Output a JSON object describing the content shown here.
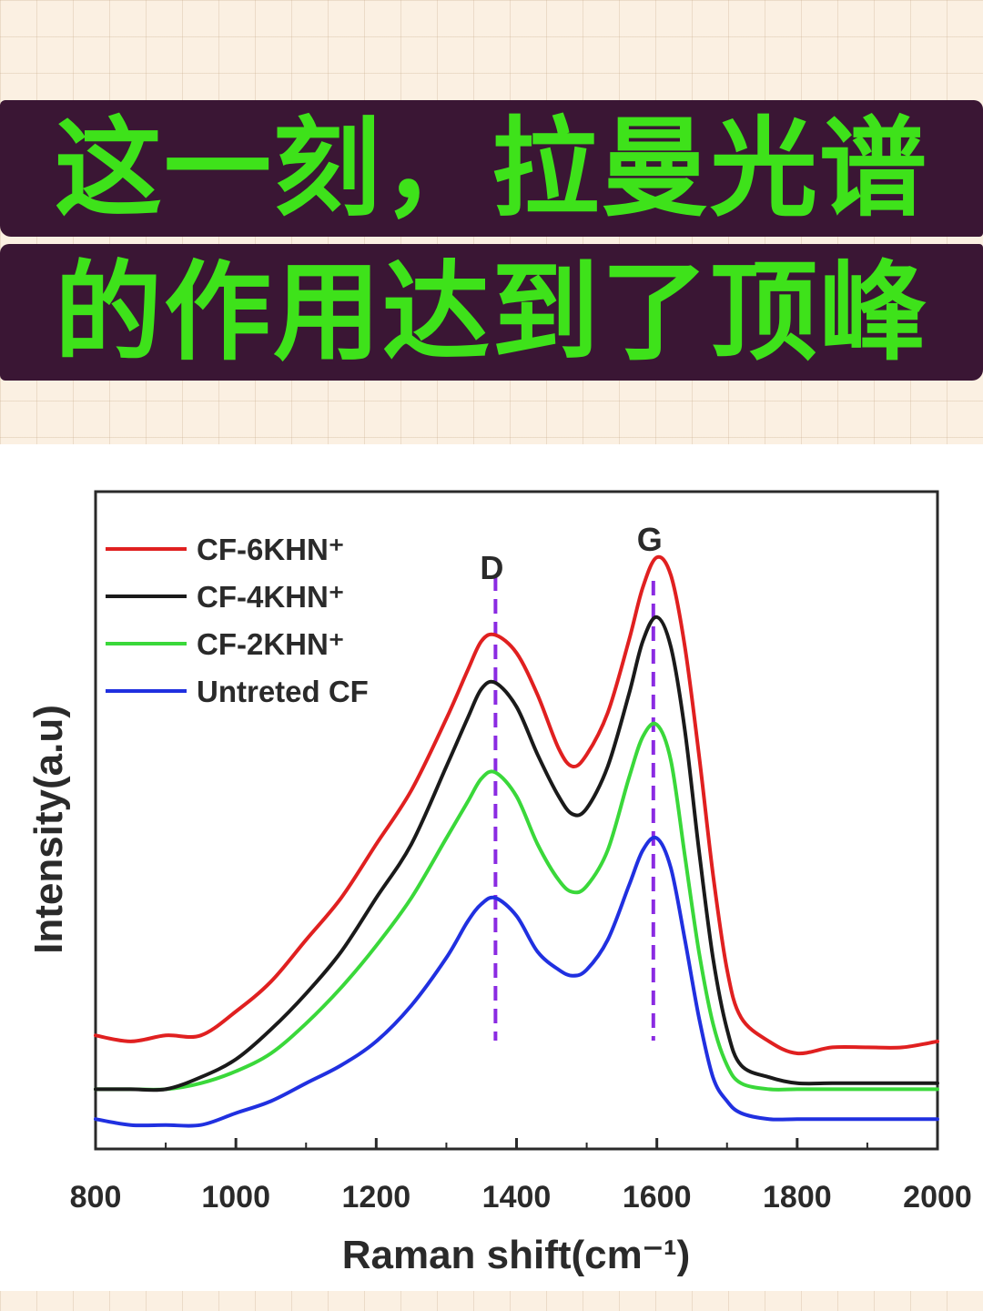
{
  "banner": {
    "line1": "这一刻，拉曼光谱",
    "line2": "的作用达到了顶峰",
    "background": "#3a1634",
    "text_color": "#3ee21a"
  },
  "chart_data": {
    "type": "line",
    "xlabel": "Raman shift(cm⁻¹)",
    "ylabel": "Intensity(a.u)",
    "xlim": [
      800,
      2000
    ],
    "ylim": [
      0,
      1.1
    ],
    "xticks": [
      "800",
      "1000",
      "1200",
      "1400",
      "1600",
      "1800",
      "2000"
    ],
    "y_tick_labels": false,
    "grid": false,
    "legend_position": "top-left",
    "peaks": [
      {
        "label": "D",
        "x": 1370
      },
      {
        "label": "G",
        "x": 1595
      }
    ],
    "peak_line_color": "#8a2be2",
    "series": [
      {
        "name": "CF-6KHN⁺",
        "color": "#e02020",
        "x": [
          800,
          850,
          900,
          950,
          1000,
          1050,
          1100,
          1150,
          1200,
          1250,
          1300,
          1330,
          1350,
          1370,
          1400,
          1430,
          1460,
          1480,
          1500,
          1530,
          1560,
          1580,
          1600,
          1620,
          1640,
          1660,
          1680,
          1700,
          1720,
          1760,
          1800,
          1850,
          1900,
          1950,
          2000
        ],
        "y": [
          0.19,
          0.18,
          0.19,
          0.19,
          0.23,
          0.28,
          0.35,
          0.42,
          0.51,
          0.6,
          0.72,
          0.8,
          0.85,
          0.86,
          0.83,
          0.76,
          0.67,
          0.64,
          0.66,
          0.73,
          0.85,
          0.94,
          0.99,
          0.96,
          0.84,
          0.66,
          0.46,
          0.3,
          0.22,
          0.18,
          0.16,
          0.17,
          0.17,
          0.17,
          0.18
        ]
      },
      {
        "name": "CF-4KHN⁺",
        "color": "#1a1a1a",
        "x": [
          800,
          850,
          900,
          950,
          1000,
          1050,
          1100,
          1150,
          1200,
          1250,
          1300,
          1330,
          1350,
          1370,
          1400,
          1430,
          1460,
          1480,
          1500,
          1530,
          1560,
          1580,
          1600,
          1620,
          1640,
          1660,
          1680,
          1700,
          1720,
          1760,
          1800,
          1850,
          1900,
          1950,
          2000
        ],
        "y": [
          0.1,
          0.1,
          0.1,
          0.12,
          0.15,
          0.2,
          0.26,
          0.33,
          0.42,
          0.51,
          0.64,
          0.72,
          0.77,
          0.78,
          0.74,
          0.66,
          0.59,
          0.56,
          0.57,
          0.64,
          0.76,
          0.85,
          0.89,
          0.84,
          0.7,
          0.5,
          0.32,
          0.2,
          0.14,
          0.12,
          0.11,
          0.11,
          0.11,
          0.11,
          0.11
        ]
      },
      {
        "name": "CF-2KHN⁺",
        "color": "#3ad83a",
        "x": [
          800,
          850,
          900,
          950,
          1000,
          1050,
          1100,
          1150,
          1200,
          1250,
          1300,
          1330,
          1350,
          1370,
          1400,
          1430,
          1460,
          1480,
          1500,
          1530,
          1560,
          1580,
          1600,
          1620,
          1640,
          1660,
          1680,
          1700,
          1720,
          1760,
          1800,
          1850,
          1900,
          1950,
          2000
        ],
        "y": [
          0.1,
          0.1,
          0.1,
          0.11,
          0.13,
          0.16,
          0.21,
          0.27,
          0.34,
          0.42,
          0.52,
          0.58,
          0.62,
          0.63,
          0.59,
          0.51,
          0.45,
          0.43,
          0.44,
          0.5,
          0.62,
          0.69,
          0.71,
          0.65,
          0.49,
          0.33,
          0.21,
          0.14,
          0.11,
          0.1,
          0.1,
          0.1,
          0.1,
          0.1,
          0.1
        ]
      },
      {
        "name": "Untreted CF",
        "color": "#2030e0",
        "x": [
          800,
          850,
          900,
          950,
          1000,
          1050,
          1100,
          1150,
          1200,
          1250,
          1300,
          1330,
          1350,
          1370,
          1400,
          1430,
          1460,
          1480,
          1500,
          1530,
          1560,
          1580,
          1600,
          1620,
          1640,
          1660,
          1680,
          1700,
          1720,
          1760,
          1800,
          1850,
          1900,
          1950,
          2000
        ],
        "y": [
          0.05,
          0.04,
          0.04,
          0.04,
          0.06,
          0.08,
          0.11,
          0.14,
          0.18,
          0.24,
          0.32,
          0.38,
          0.41,
          0.42,
          0.39,
          0.33,
          0.3,
          0.29,
          0.3,
          0.35,
          0.44,
          0.5,
          0.52,
          0.47,
          0.35,
          0.22,
          0.12,
          0.08,
          0.06,
          0.05,
          0.05,
          0.05,
          0.05,
          0.05,
          0.05
        ]
      }
    ]
  }
}
